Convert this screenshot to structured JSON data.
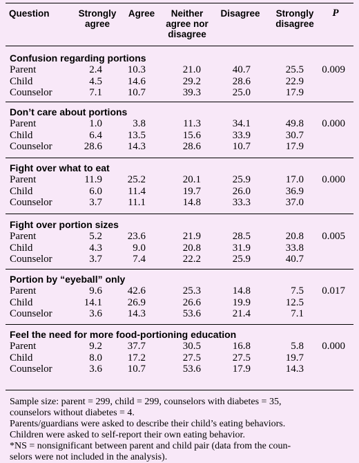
{
  "headers": {
    "question": "Question",
    "strongly_agree": [
      "Strongly",
      "agree"
    ],
    "agree": "Agree",
    "neither": [
      "Neither",
      "agree nor",
      "disagree"
    ],
    "disagree": "Disagree",
    "strongly_disagree": [
      "Strongly",
      "disagree"
    ],
    "p": "P"
  },
  "sections": [
    {
      "title": "Confusion regarding portions",
      "rows": [
        {
          "label": "Parent",
          "values": [
            "2.4",
            "10.3",
            "21.0",
            "40.7",
            "25.5"
          ],
          "p": "0.009"
        },
        {
          "label": "Child",
          "values": [
            "4.5",
            "14.6",
            "29.2",
            "28.6",
            "22.9"
          ],
          "p": ""
        },
        {
          "label": "Counselor",
          "values": [
            "7.1",
            "10.7",
            "39.3",
            "25.0",
            "17.9"
          ],
          "p": ""
        }
      ]
    },
    {
      "title": "Don’t care about portions",
      "rows": [
        {
          "label": "Parent",
          "values": [
            "1.0",
            "3.8",
            "11.3",
            "34.1",
            "49.8"
          ],
          "p": "0.000"
        },
        {
          "label": "Child",
          "values": [
            "6.4",
            "13.5",
            "15.6",
            "33.9",
            "30.7"
          ],
          "p": ""
        },
        {
          "label": "Counselor",
          "values": [
            "28.6",
            "14.3",
            "28.6",
            "10.7",
            "17.9"
          ],
          "p": ""
        }
      ]
    },
    {
      "title": "Fight over what to eat",
      "rows": [
        {
          "label": "Parent",
          "values": [
            "11.9",
            "25.2",
            "20.1",
            "25.9",
            "17.0"
          ],
          "p": "0.000"
        },
        {
          "label": "Child",
          "values": [
            "6.0",
            "11.4",
            "19.7",
            "26.0",
            "36.9"
          ],
          "p": ""
        },
        {
          "label": "Counselor",
          "values": [
            "3.7",
            "11.1",
            "14.8",
            "33.3",
            "37.0"
          ],
          "p": ""
        }
      ]
    },
    {
      "title": "Fight over portion sizes",
      "rows": [
        {
          "label": "Parent",
          "values": [
            "5.2",
            "23.6",
            "21.9",
            "28.5",
            "20.8"
          ],
          "p": "0.005"
        },
        {
          "label": "Child",
          "values": [
            "4.3",
            "9.0",
            "20.8",
            "31.9",
            "33.8"
          ],
          "p": ""
        },
        {
          "label": "Counselor",
          "values": [
            "3.7",
            "7.4",
            "22.2",
            "25.9",
            "40.7"
          ],
          "p": ""
        }
      ]
    },
    {
      "title": "Portion by “eyeball” only",
      "rows": [
        {
          "label": "Parent",
          "values": [
            "9.6",
            "42.6",
            "25.3",
            "14.8",
            "7.5"
          ],
          "p": "0.017"
        },
        {
          "label": "Child",
          "values": [
            "14.1",
            "26.9",
            "26.6",
            "19.9",
            "12.5"
          ],
          "p": ""
        },
        {
          "label": "Counselor",
          "values": [
            "3.6",
            "14.3",
            "53.6",
            "21.4",
            "7.1"
          ],
          "p": ""
        }
      ]
    },
    {
      "title": "Feel the need for more food-portioning education",
      "rows": [
        {
          "label": "Parent",
          "values": [
            "9.2",
            "37.7",
            "30.5",
            "16.8",
            "5.8"
          ],
          "p": "0.000"
        },
        {
          "label": "Child",
          "values": [
            "8.0",
            "17.2",
            "27.5",
            "27.5",
            "19.7"
          ],
          "p": ""
        },
        {
          "label": "Counselor",
          "values": [
            "3.6",
            "10.7",
            "53.6",
            "17.9",
            "14.3"
          ],
          "p": ""
        }
      ]
    }
  ],
  "notes": [
    "Sample size: parent = 299, child = 299, counselors with diabetes = 35,",
    "counselors without diabetes = 4.",
    "Parents/guardians were asked to describe their child’s eating behaviors.",
    "Children were asked to self-report their own eating behavior.",
    "*NS = nonsignificant between parent and child pair (data from the coun-",
    "selors were not included in the analysis)."
  ]
}
